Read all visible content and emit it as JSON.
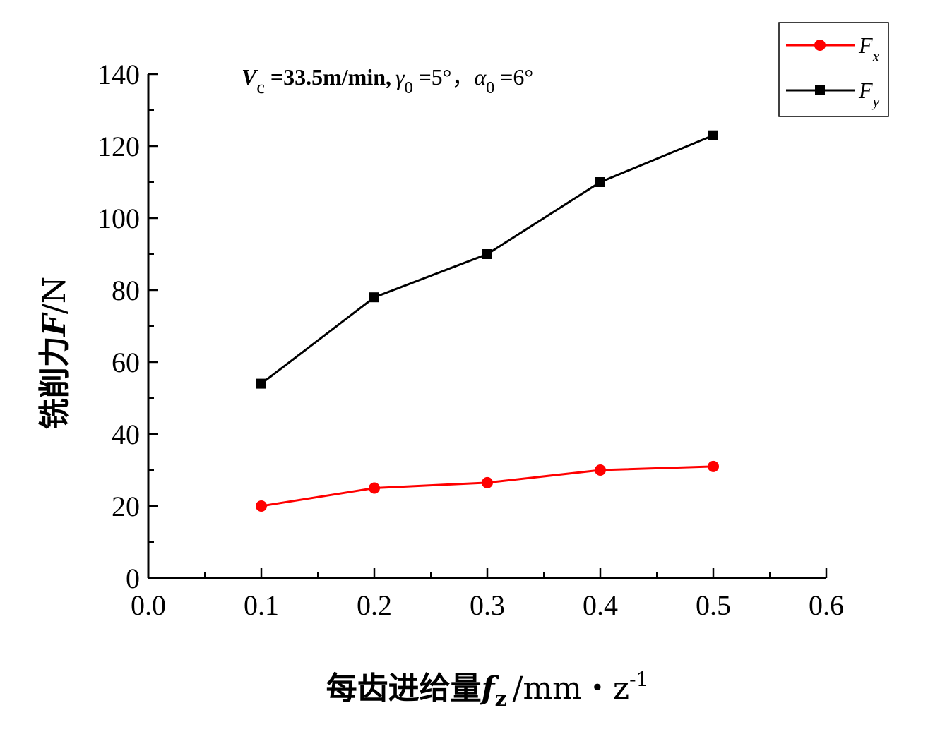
{
  "chart_data": {
    "type": "line",
    "xlabel": {
      "main": "每齿进给量",
      "symbol": "f",
      "symbol_sub": "z",
      "unit": "/mm・z",
      "unit_sup": "-1"
    },
    "ylabel": {
      "main": "铣削力",
      "symbol": "F",
      "unit": "/N"
    },
    "annotation": {
      "v_sym": "V",
      "v_sub": "c",
      "v_val": " =33.5m/min,",
      "gamma_sym": "γ",
      "gamma_sub": "0",
      "gamma_val": " =5°",
      "sep": "，",
      "alpha_sym": "α",
      "alpha_sub": "0",
      "alpha_val": " =6°"
    },
    "xlim": [
      0.0,
      0.6
    ],
    "ylim": [
      0,
      140
    ],
    "x_ticks": [
      "0.0",
      "0.1",
      "0.2",
      "0.3",
      "0.4",
      "0.5",
      "0.6"
    ],
    "y_ticks": [
      "0",
      "20",
      "40",
      "60",
      "80",
      "100",
      "120",
      "140"
    ],
    "x_tick_values": [
      0.0,
      0.1,
      0.2,
      0.3,
      0.4,
      0.5,
      0.6
    ],
    "y_tick_values": [
      0,
      20,
      40,
      60,
      80,
      100,
      120,
      140
    ],
    "x_minor_step": 0.05,
    "y_minor_step": 10,
    "grid": false,
    "legend_position": "top-right",
    "x": [
      0.1,
      0.2,
      0.3,
      0.4,
      0.5
    ],
    "series": [
      {
        "key": "fx",
        "name": "F",
        "name_sub": "x",
        "marker": "circle",
        "color": "#ff0000",
        "values": [
          20,
          25,
          26.5,
          30,
          31
        ]
      },
      {
        "key": "fy",
        "name": "F",
        "name_sub": "y",
        "marker": "square",
        "color": "#000000",
        "values": [
          54,
          78,
          90,
          110,
          123
        ]
      }
    ]
  }
}
